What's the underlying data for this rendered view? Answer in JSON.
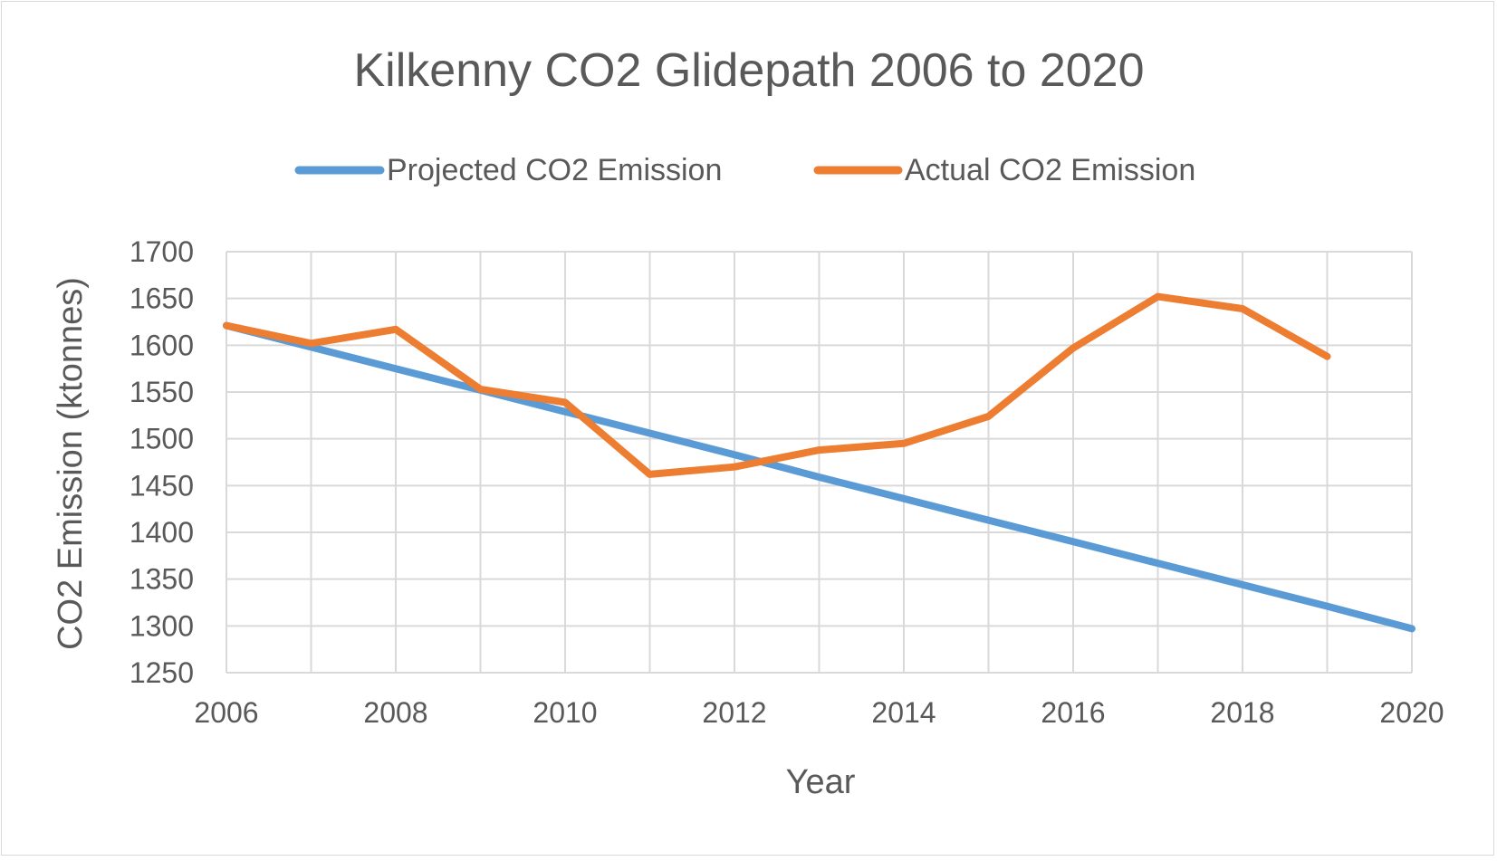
{
  "chart_data": {
    "type": "line",
    "title": "Kilkenny CO2 Glidepath 2006 to 2020",
    "xlabel": "Year",
    "ylabel": "CO2 Emission (ktonnes)",
    "xlim": [
      2006,
      2020
    ],
    "ylim": [
      1250,
      1700
    ],
    "x_ticks": [
      2006,
      2008,
      2010,
      2012,
      2014,
      2016,
      2018,
      2020
    ],
    "y_ticks": [
      1250,
      1300,
      1350,
      1400,
      1450,
      1500,
      1550,
      1600,
      1650,
      1700
    ],
    "grid": true,
    "legend_position": "top",
    "series": [
      {
        "name": "Projected CO2 Emission",
        "color": "#5b9bd5",
        "x": [
          2006,
          2007,
          2008,
          2009,
          2010,
          2011,
          2012,
          2013,
          2014,
          2015,
          2016,
          2017,
          2018,
          2019,
          2020
        ],
        "values": [
          1621,
          1598,
          1575,
          1552,
          1529,
          1506,
          1483,
          1459,
          1436,
          1413,
          1390,
          1367,
          1344,
          1321,
          1297
        ]
      },
      {
        "name": "Actual CO2 Emission",
        "color": "#ed7d31",
        "x": [
          2006,
          2007,
          2008,
          2009,
          2010,
          2011,
          2012,
          2013,
          2014,
          2015,
          2016,
          2017,
          2018,
          2019
        ],
        "values": [
          1621,
          1602,
          1617,
          1553,
          1539,
          1462,
          1470,
          1488,
          1495,
          1524,
          1597,
          1652,
          1639,
          1588
        ]
      }
    ]
  }
}
